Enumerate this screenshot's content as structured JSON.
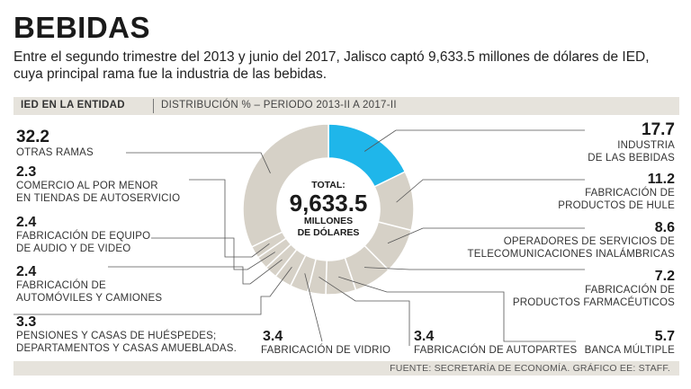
{
  "header": {
    "title": "BEBIDAS",
    "subtitle": "Entre el segundo trimestre del 2013 y junio del 2017, Jalisco captó 9,633.5 millones de dólares de IED, cuya principal rama fue la industria de las bebidas."
  },
  "subheader": {
    "label": "IED EN LA ENTIDAD",
    "range": "DISTRIBUCIÓN % – PERIODO 2013-II A 2017-II"
  },
  "center": {
    "total_label": "TOTAL:",
    "total_value": "9,633.5",
    "unit_line1": "MILLONES",
    "unit_line2": "DE DÓLARES"
  },
  "source": "FUENTE: SECRETARÍA DE ECONOMÍA. GRÁFICO EE: STAFF.",
  "colors": {
    "highlight": "#1fb6ea",
    "slice": "#d6d1c7",
    "separator": "#ffffff",
    "leader": "#555555"
  },
  "chart_data": {
    "type": "pie",
    "title": "IED EN LA ENTIDAD",
    "subtitle": "DISTRIBUCIÓN % – PERIODO 2013-II A 2017-II",
    "total": 9633.5,
    "unit": "millones de dólares",
    "slices": [
      {
        "value": 17.7,
        "value_label": "17.7",
        "category": "INDUSTRIA DE LAS BEBIDAS",
        "lines": [
          "INDUSTRIA",
          "DE LAS BEBIDAS"
        ],
        "highlight": true
      },
      {
        "value": 11.2,
        "value_label": "11.2",
        "category": "FABRICACIÓN DE PRODUCTOS DE HULE",
        "lines": [
          "FABRICACIÓN DE",
          "PRODUCTOS DE HULE"
        ]
      },
      {
        "value": 8.6,
        "value_label": "8.6",
        "category": "OPERADORES DE SERVICIOS DE TELECOMUNICACIONES INALÁMBRICAS",
        "lines": [
          "OPERADORES DE SERVICIOS DE",
          "TELECOMUNICACIONES INALÁMBRICAS"
        ]
      },
      {
        "value": 7.2,
        "value_label": "7.2",
        "category": "FABRICACIÓN DE PRODUCTOS FARMACÉUTICOS",
        "lines": [
          "FABRICACIÓN DE",
          "PRODUCTOS FARMACÉUTICOS"
        ]
      },
      {
        "value": 5.7,
        "value_label": "5.7",
        "category": "BANCA MÚLTIPLE",
        "lines": [
          "BANCA MÚLTIPLE"
        ]
      },
      {
        "value": 3.4,
        "value_label": "3.4",
        "category": "FABRICACIÓN DE AUTOPARTES",
        "lines": [
          "FABRICACIÓN DE AUTOPARTES"
        ]
      },
      {
        "value": 3.4,
        "value_label": "3.4",
        "category": "FABRICACIÓN DE VIDRIO",
        "lines": [
          "FABRICACIÓN DE VIDRIO"
        ]
      },
      {
        "value": 3.3,
        "value_label": "3.3",
        "category": "PENSIONES Y CASAS DE HUÉSPEDES; DEPARTAMENTOS Y CASAS AMUEBLADAS.",
        "lines": [
          "PENSIONES Y CASAS DE HUÉSPEDES;",
          "DEPARTAMENTOS Y CASAS AMUEBLADAS."
        ]
      },
      {
        "value": 2.4,
        "value_label": "2.4",
        "category": "FABRICACIÓN DE AUTOMÓVILES Y CAMIONES",
        "lines": [
          "FABRICACIÓN DE",
          "AUTOMÓVILES Y CAMIONES"
        ]
      },
      {
        "value": 2.4,
        "value_label": "2.4",
        "category": "FABRICACIÓN DE EQUIPO DE AUDIO Y DE VIDEO",
        "lines": [
          "FABRICACIÓN DE EQUIPO",
          "DE AUDIO Y DE VIDEO"
        ]
      },
      {
        "value": 2.3,
        "value_label": "2.3",
        "category": "COMERCIO AL POR MENOR EN TIENDAS DE AUTOSERVICIO",
        "lines": [
          "COMERCIO AL POR MENOR",
          "EN TIENDAS DE AUTOSERVICIO"
        ]
      },
      {
        "value": 32.2,
        "value_label": "32.2",
        "category": "OTRAS RAMAS",
        "lines": [
          "OTRAS RAMAS"
        ]
      }
    ]
  }
}
